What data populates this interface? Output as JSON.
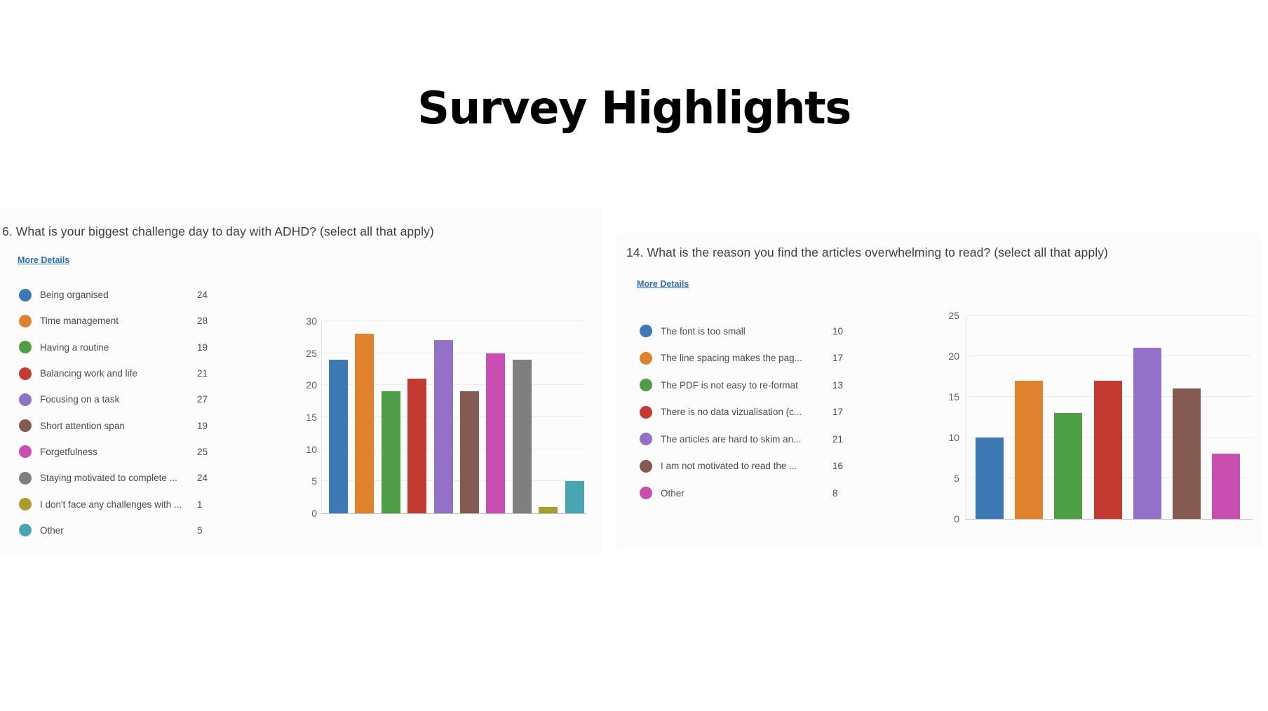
{
  "page": {
    "title": "Survey Highlights",
    "background_color": "#ffffff",
    "link_color": "#2b70b9"
  },
  "chart_data": [
    {
      "type": "bar",
      "panel": "left",
      "title": "6.  What is your biggest challenge day to day with ADHD? (select all that apply)",
      "more_details_label": "More Details",
      "categories": [
        "Being organised",
        "Time management",
        "Having a routine",
        "Balancing work and life",
        "Focusing on a task",
        "Short attention span",
        "Forgetfulness",
        "Staying motivated to complete ...",
        "I don't face any challenges with ...",
        "Other"
      ],
      "values": [
        24,
        28,
        19,
        21,
        27,
        19,
        25,
        24,
        1,
        5
      ],
      "colors": [
        "#3d7ab5",
        "#e0812e",
        "#4d9e44",
        "#c33a32",
        "#9271c7",
        "#855a51",
        "#c84fb1",
        "#7f7f7f",
        "#a99d2f",
        "#4aa5b2"
      ],
      "ylim": [
        0,
        30
      ],
      "yticks": [
        0,
        5,
        10,
        15,
        20,
        25,
        30
      ],
      "grid": true,
      "legend_position": "left"
    },
    {
      "type": "bar",
      "panel": "right",
      "title": "14.  What is the reason you find the articles overwhelming to read? (select all that apply)",
      "more_details_label": "More Details",
      "categories": [
        "The font is too small",
        "The line spacing makes the pag...",
        "The PDF is not easy to re-format",
        "There is no data vizualisation (c...",
        "The articles are hard to skim an...",
        "I am not motivated to read the ...",
        "Other"
      ],
      "values": [
        10,
        17,
        13,
        17,
        21,
        16,
        8
      ],
      "colors": [
        "#3d7ab5",
        "#e0812e",
        "#4d9e44",
        "#c33a32",
        "#9271c7",
        "#855a51",
        "#c84fb1"
      ],
      "ylim": [
        0,
        25
      ],
      "yticks": [
        0,
        5,
        10,
        15,
        20,
        25
      ],
      "grid": true,
      "legend_position": "left"
    }
  ]
}
